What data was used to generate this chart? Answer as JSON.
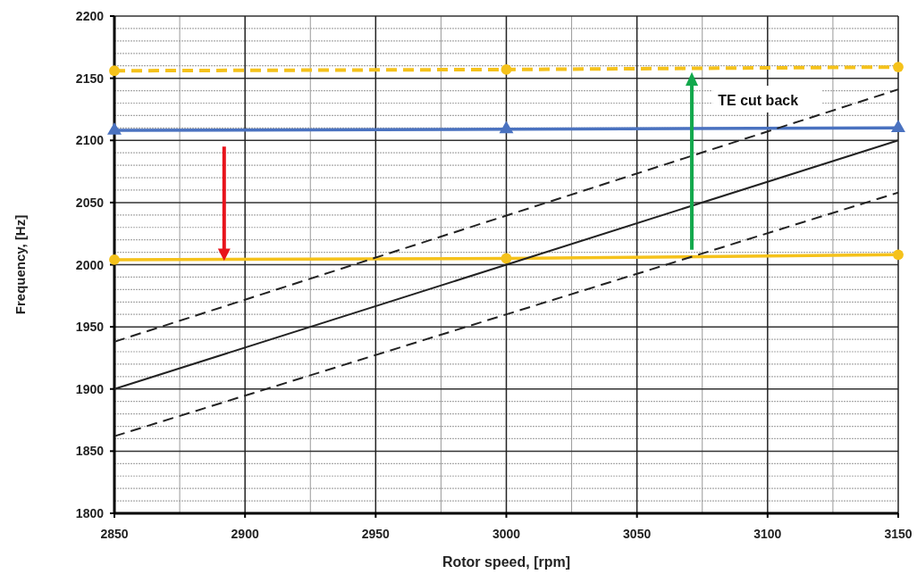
{
  "chart_data": {
    "type": "line",
    "xlabel": "Rotor speed, [rpm]",
    "ylabel": "Frequency, [Hz]",
    "xlim": [
      2850,
      3150
    ],
    "xticks": [
      2850,
      2900,
      2950,
      3000,
      3050,
      3100,
      3150
    ],
    "ylim": [
      1800,
      2200
    ],
    "yticks": [
      1800,
      1850,
      1900,
      1950,
      2000,
      2050,
      2100,
      2150,
      2200
    ],
    "grid": true,
    "annotations": [
      "TE cut back"
    ],
    "series": [
      {
        "color": "#f5c21b",
        "x": [
          2850,
          3000,
          3150
        ],
        "values": [
          2156,
          2157,
          2159
        ],
        "marker": "circle",
        "line_style": "dashed"
      },
      {
        "color": "#4a72c0",
        "x": [
          2850,
          3000,
          3150
        ],
        "values": [
          2108,
          2109,
          2110
        ],
        "marker": "triangle",
        "line_style": "solid"
      },
      {
        "color": "#f5c21b",
        "x": [
          2850,
          3000,
          3150
        ],
        "values": [
          2004,
          2005,
          2008
        ],
        "marker": "circle",
        "line_style": "solid"
      },
      {
        "color": "#222222",
        "x": [
          2850,
          3150
        ],
        "values": [
          1938,
          2141
        ],
        "marker": "none",
        "line_style": "dashed"
      },
      {
        "color": "#222222",
        "x": [
          2850,
          3150
        ],
        "values": [
          1900,
          2100
        ],
        "marker": "none",
        "line_style": "solid"
      },
      {
        "color": "#222222",
        "x": [
          2850,
          3150
        ],
        "values": [
          1862,
          2058
        ],
        "marker": "none",
        "line_style": "dashed"
      }
    ]
  }
}
